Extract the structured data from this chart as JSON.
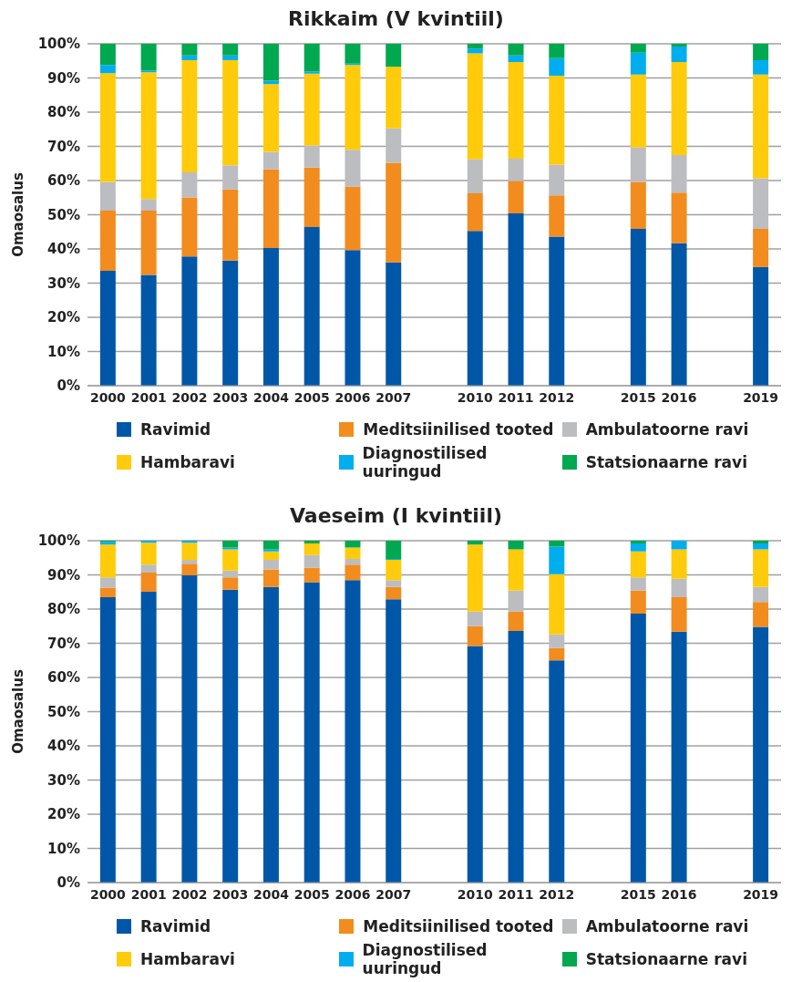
{
  "chart_data": [
    {
      "type": "bar",
      "title": "Rikkaim (V kvintiil)",
      "ylabel": "Omaosalus",
      "stacked": true,
      "grid": "y",
      "legend": "bottom",
      "categories": [
        "2000",
        "2001",
        "2002",
        "2003",
        "2004",
        "2005",
        "2006",
        "2007",
        null,
        "2010",
        "2011",
        "2012",
        null,
        "2015",
        "2016",
        null,
        "2019"
      ],
      "ylim": [
        0,
        100
      ],
      "yticks": [
        {
          "value": 0,
          "label": "0%"
        },
        {
          "value": 10,
          "label": "10%"
        },
        {
          "value": 20,
          "label": "20%"
        },
        {
          "value": 30,
          "label": "30%"
        },
        {
          "value": 40,
          "label": "40%"
        },
        {
          "value": 50,
          "label": "50%"
        },
        {
          "value": 60,
          "label": "60%"
        },
        {
          "value": 70,
          "label": "70%"
        },
        {
          "value": 80,
          "label": "80%"
        },
        {
          "value": 90,
          "label": "90%"
        },
        {
          "value": 100,
          "label": "100%"
        }
      ],
      "series": [
        {
          "name": "Ravimid",
          "color": "#0057a8",
          "values": [
            33.6,
            32.4,
            37.8,
            36.6,
            40.3,
            46.4,
            39.7,
            36.1,
            null,
            45.3,
            50.4,
            43.6,
            null,
            45.9,
            41.7,
            null,
            34.7
          ]
        },
        {
          "name": "Meditsiinilised tooted",
          "color": "#f28c1e",
          "values": [
            17.6,
            18.8,
            17.3,
            20.8,
            23.0,
            17.4,
            18.5,
            29.1,
            null,
            11.0,
            9.5,
            12.1,
            null,
            13.7,
            14.8,
            null,
            11.2
          ]
        },
        {
          "name": "Ambulatoorne ravi",
          "color": "#bcbdc0",
          "values": [
            8.4,
            3.4,
            7.3,
            7.1,
            5.1,
            6.5,
            10.8,
            10.1,
            null,
            9.9,
            6.5,
            9.0,
            null,
            10.1,
            11.0,
            null,
            14.8
          ]
        },
        {
          "name": "Hambaravi",
          "color": "#ffcb0a",
          "values": [
            31.8,
            37.1,
            32.8,
            30.7,
            19.8,
            21.0,
            24.8,
            18.0,
            null,
            31.0,
            28.3,
            26.0,
            null,
            21.3,
            27.2,
            null,
            30.3
          ]
        },
        {
          "name": "Diagnostilised uuringud",
          "color": "#00aeef",
          "values": [
            2.4,
            0.5,
            1.4,
            1.4,
            1.0,
            0.6,
            0.4,
            0,
            null,
            1.4,
            1.9,
            5.1,
            null,
            6.4,
            4.5,
            null,
            4.2
          ]
        },
        {
          "name": "Statsionaarne ravi",
          "color": "#00a84f",
          "values": [
            6.2,
            7.8,
            3.4,
            3.4,
            10.8,
            8.1,
            5.8,
            6.7,
            null,
            1.4,
            3.4,
            4.2,
            null,
            2.6,
            0.8,
            null,
            4.8
          ]
        }
      ]
    },
    {
      "type": "bar",
      "title": "Vaeseim (I kvintiil)",
      "ylabel": "Omaosalus",
      "stacked": true,
      "grid": "y",
      "legend": "bottom",
      "categories": [
        "2000",
        "2001",
        "2002",
        "2003",
        "2004",
        "2005",
        "2006",
        "2007",
        null,
        "2010",
        "2011",
        "2012",
        null,
        "2015",
        "2016",
        null,
        "2019"
      ],
      "ylim": [
        0,
        100
      ],
      "yticks": [
        {
          "value": 0,
          "label": "0%"
        },
        {
          "value": 10,
          "label": "10%"
        },
        {
          "value": 20,
          "label": "20%"
        },
        {
          "value": 30,
          "label": "30%"
        },
        {
          "value": 40,
          "label": "40%"
        },
        {
          "value": 50,
          "label": "50%"
        },
        {
          "value": 60,
          "label": "60%"
        },
        {
          "value": 70,
          "label": "70%"
        },
        {
          "value": 80,
          "label": "80%"
        },
        {
          "value": 90,
          "label": "90%"
        },
        {
          "value": 100,
          "label": "100%"
        }
      ],
      "series": [
        {
          "name": "Ravimid",
          "color": "#0057a8",
          "values": [
            83.5,
            85.1,
            89.9,
            85.7,
            86.5,
            87.9,
            88.5,
            82.9,
            null,
            69.2,
            73.6,
            65.0,
            null,
            78.7,
            73.4,
            null,
            74.8
          ]
        },
        {
          "name": "Meditsiinilised tooted",
          "color": "#f28c1e",
          "values": [
            2.8,
            5.6,
            3.4,
            3.6,
            5.1,
            4.2,
            4.5,
            3.6,
            null,
            5.8,
            5.7,
            3.6,
            null,
            6.7,
            10.1,
            null,
            7.3
          ]
        },
        {
          "name": "Ambulatoorne ravi",
          "color": "#bcbdc0",
          "values": [
            3.0,
            2.3,
            1.1,
            2.0,
            2.8,
            3.7,
            1.7,
            2.0,
            null,
            4.3,
            6.1,
            4.0,
            null,
            3.9,
            5.4,
            null,
            4.4
          ]
        },
        {
          "name": "Hambaravi",
          "color": "#ffcb0a",
          "values": [
            9.6,
            6.4,
            5.0,
            6.2,
            2.5,
            3.4,
            3.3,
            5.9,
            null,
            19.6,
            12.1,
            17.6,
            null,
            7.6,
            8.6,
            null,
            11.0
          ]
        },
        {
          "name": "Diagnostilised uuringud",
          "color": "#00aeef",
          "values": [
            0.8,
            0.6,
            0.6,
            0.5,
            0.6,
            0,
            0,
            0.3,
            null,
            0,
            0,
            8.1,
            null,
            2.3,
            2.5,
            null,
            1.7
          ]
        },
        {
          "name": "Statsionaarne ravi",
          "color": "#00a84f",
          "values": [
            0.3,
            0,
            0,
            2.0,
            2.5,
            0.8,
            2.0,
            5.3,
            null,
            1.1,
            2.5,
            1.7,
            null,
            0.8,
            0,
            null,
            0.8
          ]
        }
      ]
    }
  ]
}
